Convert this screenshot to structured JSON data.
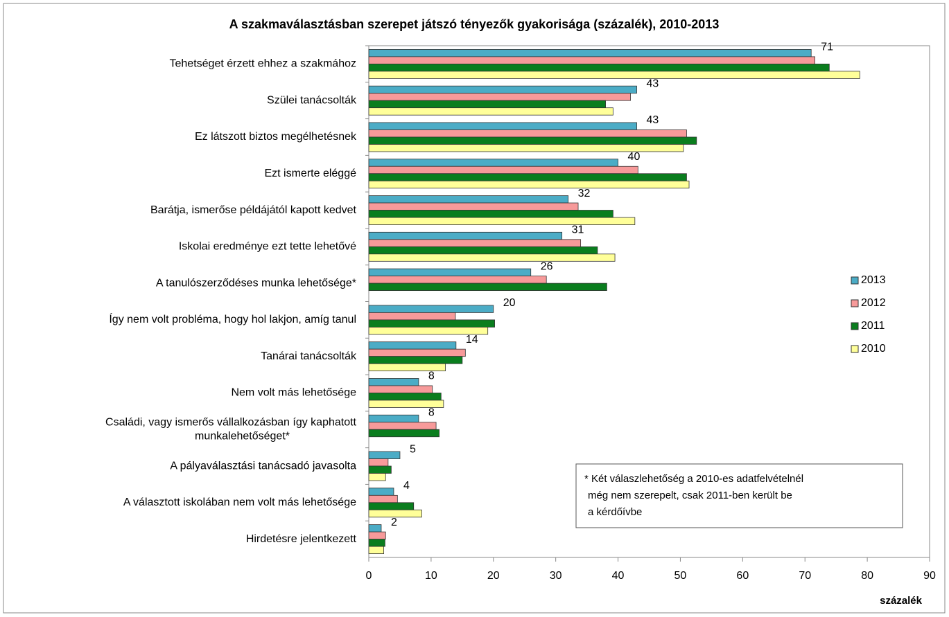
{
  "chart_data": {
    "type": "hbar",
    "title": "A szakmaválasztásban szerepet játszó tényezők gyakorisága (százalék), 2010-2013",
    "x_label": "százalék",
    "categories": [
      "Tehetséget érzett ehhez a szakmához",
      "Szülei tanácsolták",
      "Ez látszott biztos megélhetésnek",
      "Ezt ismerte eléggé",
      "Barátja, ismerőse példájától kapott kedvet",
      "Iskolai eredménye ezt tette lehetővé",
      "A tanulószerződéses munka lehetősége*",
      "Így nem volt probléma, hogy hol lakjon, amíg tanul",
      "Tanárai tanácsolták",
      "Nem volt más lehetősége",
      "Családi, vagy ismerős vállalkozásban így kaphatott\nmunkalehetőséget*",
      "A pályaválasztási tanácsadó javasolta",
      "A választott iskolában nem volt más lehetősége",
      "Hirdetésre jelentkezett"
    ],
    "series": [
      {
        "name": "2013",
        "color": "#4bacc6",
        "show_labels": true,
        "values": [
          71,
          43,
          43,
          40,
          32,
          31,
          26,
          20,
          14,
          8,
          8,
          5,
          4,
          2
        ]
      },
      {
        "name": "2012",
        "color": "#f79a9a",
        "values": [
          71.6,
          42,
          51,
          43.2,
          33.6,
          34,
          28.5,
          13.9,
          15.5,
          10.2,
          10.8,
          3.1,
          4.6,
          2.7
        ]
      },
      {
        "name": "2011",
        "color": "#0a7d1e",
        "values": [
          73.9,
          38,
          52.6,
          51,
          39.2,
          36.7,
          38.2,
          20.2,
          15,
          11.6,
          11.3,
          3.6,
          7.2,
          2.6
        ]
      },
      {
        "name": "2010",
        "color": "#ffff99",
        "values": [
          78.8,
          39.2,
          50.5,
          51.4,
          42.7,
          39.5,
          null,
          19.1,
          12.3,
          12,
          null,
          2.7,
          8.5,
          2.4
        ]
      }
    ],
    "xlim": [
      0,
      90
    ],
    "xticks": [
      0,
      10,
      20,
      30,
      40,
      50,
      60,
      70,
      80,
      90
    ],
    "legend_position": "right",
    "annotation": [
      "* Két válaszlehetőség  a 2010-es adatfelvételnél",
      "még nem szerepelt,  csak 2011-ben  került be",
      "a kérdőívbe"
    ]
  }
}
